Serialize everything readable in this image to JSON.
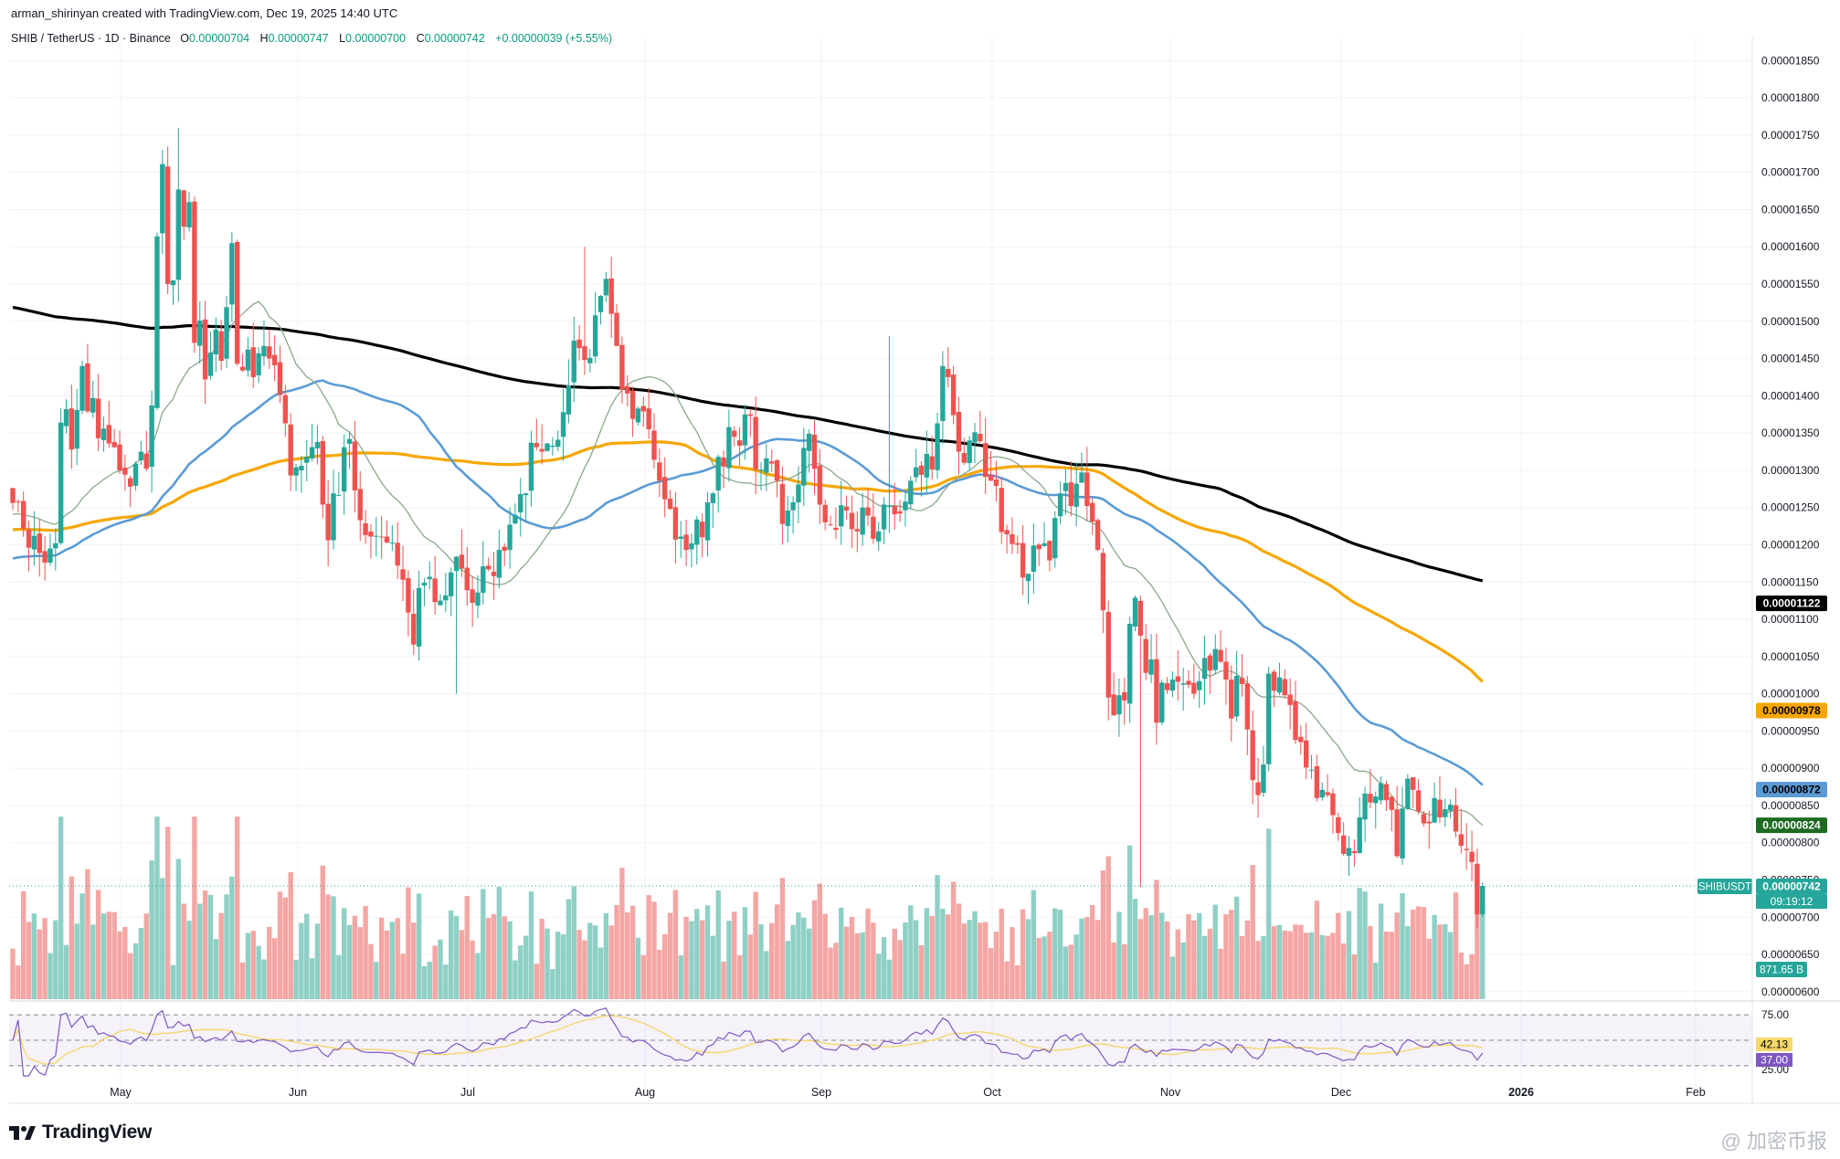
{
  "header": {
    "created_by": "arman_shirinyan created with TradingView.com, Dec 19, 2025 14:40 UTC",
    "symbol_line": "SHIB / TetherUS · 1D · Binance",
    "ohlc": {
      "o_label": "O",
      "o": "0.00000704",
      "h_label": "H",
      "h": "0.00000747",
      "l_label": "L",
      "l": "0.00000700",
      "c_label": "C",
      "c": "0.00000742",
      "change": "+0.00000039 (+5.55%)"
    }
  },
  "branding": {
    "logo_text": "TradingView",
    "watermark": "@ 加密币报"
  },
  "colors": {
    "up": "#26a69a",
    "down": "#ef5350",
    "ma_black": "#000000",
    "ma_orange": "#f7a600",
    "ma_blue": "#5b9bd5",
    "ma_green": "#8aa88a",
    "rsi_line": "#7e57c2",
    "rsi_ma": "#f5d76e",
    "grid": "#f0f3fa"
  },
  "chart_data": {
    "type": "candlestick",
    "title": "SHIB / TetherUS · 1D · Binance",
    "price_axis": {
      "ticks": [
        "0.00001850",
        "0.00001800",
        "0.00001750",
        "0.00001700",
        "0.00001650",
        "0.00001600",
        "0.00001550",
        "0.00001500",
        "0.00001450",
        "0.00001400",
        "0.00001350",
        "0.00001300",
        "0.00001250",
        "0.00001200",
        "0.00001150",
        "0.00001100",
        "0.00001050",
        "0.00001000",
        "0.00000950",
        "0.00000900",
        "0.00000850",
        "0.00000800",
        "0.00000750",
        "0.00000700",
        "0.00000650",
        "0.00000600"
      ],
      "range": [
        5.9e-06,
        1.87e-05
      ]
    },
    "time_axis": [
      "May",
      "Jun",
      "Jul",
      "Aug",
      "Sep",
      "Oct",
      "Nov",
      "Dec",
      "2026",
      "Feb"
    ],
    "grid": true,
    "candles_close": [
      1.256,
      1.258,
      1.221,
      1.196,
      1.212,
      1.189,
      1.176,
      1.195,
      1.202,
      1.364,
      1.382,
      1.328,
      1.381,
      1.44,
      1.379,
      1.397,
      1.343,
      1.356,
      1.336,
      1.331,
      1.3,
      1.294,
      1.278,
      1.309,
      1.325,
      1.302,
      1.387,
      1.614,
      1.711,
      1.55,
      1.555,
      1.677,
      1.627,
      1.66,
      1.471,
      1.501,
      1.422,
      1.458,
      1.489,
      1.447,
      1.519,
      1.605,
      1.443,
      1.434,
      1.462,
      1.425,
      1.457,
      1.467,
      1.45,
      1.441,
      1.401,
      1.363,
      1.293,
      1.304,
      1.306,
      1.318,
      1.331,
      1.338,
      1.254,
      1.206,
      1.269,
      1.267,
      1.331,
      1.342,
      1.273,
      1.233,
      1.213,
      1.211,
      1.212,
      1.21,
      1.203,
      1.203,
      1.172,
      1.153,
      1.109,
      1.066,
      1.142,
      1.149,
      1.157,
      1.123,
      1.125,
      1.132,
      1.163,
      1.184,
      1.168,
      1.139,
      1.122,
      1.136,
      1.171,
      1.167,
      1.158,
      1.193,
      1.192,
      1.227,
      1.24,
      1.268,
      1.269,
      1.337,
      1.331,
      1.325,
      1.336,
      1.333,
      1.341,
      1.378,
      1.414,
      1.474,
      1.464,
      1.448,
      1.451,
      1.508,
      1.534,
      1.557,
      1.51,
      1.467,
      1.408,
      1.403,
      1.369,
      1.383,
      1.379,
      1.355,
      1.314,
      1.286,
      1.261,
      1.248,
      1.207,
      1.211,
      1.193,
      1.202,
      1.234,
      1.21,
      1.257,
      1.269,
      1.318,
      1.305,
      1.358,
      1.345,
      1.333,
      1.375,
      1.373,
      1.301,
      1.301,
      1.316,
      1.309,
      1.286,
      1.228,
      1.246,
      1.257,
      1.281,
      1.33,
      1.349,
      1.302,
      1.254,
      1.23,
      1.226,
      1.22,
      1.253,
      1.246,
      1.221,
      1.218,
      1.25,
      1.239,
      1.208,
      1.218,
      1.254,
      1.252,
      1.241,
      1.242,
      1.258,
      1.286,
      1.304,
      1.294,
      1.322,
      1.301,
      1.363,
      1.44,
      1.425,
      1.374,
      1.325,
      1.31,
      1.34,
      1.351,
      1.339,
      1.291,
      1.286,
      1.279,
      1.217,
      1.214,
      1.201,
      1.2,
      1.156,
      1.161,
      1.199,
      1.194,
      1.202,
      1.179,
      1.236,
      1.269,
      1.283,
      1.252,
      1.282,
      1.297,
      1.252,
      1.231,
      1.193,
      1.112,
      0.995,
      0.971,
      0.998,
      0.991,
      1.094,
      1.129,
      1.078,
      1.028,
      1.046,
      0.961,
      1.015,
      1.005,
      1.019,
      1.016,
      1.014,
      1.012,
      1.0,
      1.017,
      1.048,
      1.031,
      1.06,
      1.043,
      1.019,
      0.967,
      1.024,
      1.013,
      0.952,
      0.884,
      0.864,
      0.905,
      1.027,
      1.004,
      1.022,
      0.998,
      0.985,
      0.938,
      0.935,
      0.901,
      0.898,
      0.86,
      0.871,
      0.864,
      0.837,
      0.813,
      0.785,
      0.793,
      0.786,
      0.834,
      0.866,
      0.854,
      0.862,
      0.88,
      0.857,
      0.844,
      0.782,
      0.846,
      0.886,
      0.871,
      0.842,
      0.826,
      0.826,
      0.86,
      0.834,
      0.845,
      0.851,
      0.815,
      0.796,
      0.79,
      0.774,
      0.704,
      0.742
    ],
    "last_price": "0.00000742",
    "moving_averages": [
      {
        "color": "black",
        "value": "0.00001122"
      },
      {
        "color": "orange",
        "value": "0.00000978"
      },
      {
        "color": "blue",
        "value": "0.00000872"
      },
      {
        "color": "green",
        "value": "0.00000824"
      }
    ],
    "symbol_tag": "SHIBUSDT",
    "countdown": "09:19:12",
    "volume_label": "871.65 B",
    "rsi": {
      "levels": [
        "75.00",
        "25.00"
      ],
      "rsi_ma": "42.13",
      "rsi": "37.00"
    }
  }
}
